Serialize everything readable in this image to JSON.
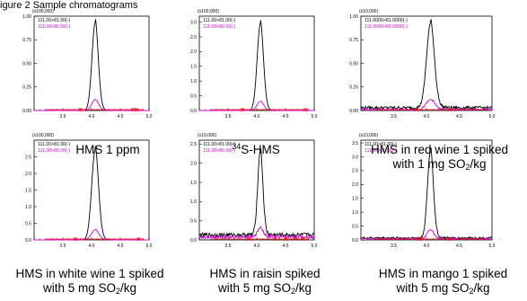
{
  "header": "igure 2 Sample chromatograms",
  "chart_data": [
    {
      "type": "line",
      "caption": "HMS 1 ppm",
      "multiplier": "(x100,000)",
      "xlim": [
        3.0,
        5.0
      ],
      "ylim": [
        0,
        1.0
      ],
      "xticks": [
        "3.5",
        "4.0",
        "4.5",
        "5.0"
      ],
      "yticks": [
        "0.00",
        "0.25",
        "0.50",
        "0.75",
        "1.00"
      ],
      "legend": [
        {
          "label": "111.00>81.00(-)",
          "color": "#000000"
        },
        {
          "label": "111.00>80.00(-)",
          "color": "#d400d4"
        }
      ],
      "series": [
        {
          "label_ref": 0,
          "color": "#000000",
          "baseline": 0.0,
          "peak_x": 4.06,
          "peak_y": 0.98,
          "width": 0.055,
          "noise": 0.0
        },
        {
          "label_ref": 1,
          "color": "#d400d4",
          "baseline": 0.0,
          "peak_x": 4.06,
          "peak_y": 0.12,
          "width": 0.06,
          "noise": 0.0
        }
      ],
      "markers": [
        3.8,
        4.72,
        4.78
      ]
    },
    {
      "type": "line",
      "caption_main": "S-HMS",
      "caption_sup": "34",
      "multiplier": "(x100,000)",
      "xlim": [
        3.0,
        5.0
      ],
      "ylim": [
        0,
        3.2
      ],
      "xticks": [
        "3.5",
        "4.0",
        "4.5",
        "5.0"
      ],
      "yticks": [
        "0.0",
        "0.5",
        "1.0",
        "1.5",
        "2.0",
        "2.5",
        "3.0"
      ],
      "legend": [
        {
          "label": "111.00>81.00(-)",
          "color": "#000000"
        },
        {
          "label": "111.00>80.00(-)",
          "color": "#d400d4"
        }
      ],
      "series": [
        {
          "label_ref": 0,
          "color": "#000000",
          "baseline": 0.0,
          "peak_x": 4.06,
          "peak_y": 3.1,
          "width": 0.055,
          "noise": 0.0
        },
        {
          "label_ref": 1,
          "color": "#d400d4",
          "baseline": 0.0,
          "peak_x": 4.06,
          "peak_y": 0.32,
          "width": 0.06,
          "noise": 0.0
        }
      ],
      "markers": [
        3.75,
        4.85
      ]
    },
    {
      "type": "line",
      "caption_lines": [
        "HMS in red wine 1 spiked",
        "with 1 mg SO",
        "/kg"
      ],
      "caption_sub": "2",
      "multiplier": "(x10,000)",
      "xlim": [
        3.0,
        5.0
      ],
      "ylim": [
        0,
        1.0
      ],
      "xticks": [
        "3.5",
        "4.0",
        "4.5",
        "5.0"
      ],
      "yticks": [
        "0.00",
        "0.25",
        "0.50",
        "0.75",
        "1.00"
      ],
      "legend": [
        {
          "label": "111.0000>81.0000(-)",
          "color": "#000000"
        },
        {
          "label": "111.0000>80.0000(-)",
          "color": "#d400d4"
        }
      ],
      "series": [
        {
          "label_ref": 0,
          "color": "#000000",
          "baseline": 0.03,
          "peak_x": 4.06,
          "peak_y": 0.97,
          "width": 0.06,
          "noise": 0.015
        },
        {
          "label_ref": 1,
          "color": "#d400d4",
          "baseline": 0.01,
          "peak_x": 4.06,
          "peak_y": 0.12,
          "width": 0.065,
          "noise": 0.01
        }
      ],
      "markers": [
        3.85,
        4.35
      ]
    },
    {
      "type": "line",
      "caption_lines": [
        "HMS in white wine 1 spiked",
        "with 5 mg SO",
        "/kg"
      ],
      "caption_sub": "2",
      "multiplier": "(x100,000)",
      "xlim": [
        3.0,
        5.0
      ],
      "ylim": [
        0,
        3.0
      ],
      "xticks": [
        "3.5",
        "4.0",
        "4.5",
        "5.0"
      ],
      "yticks": [
        "0.0",
        "0.5",
        "1.0",
        "1.5",
        "2.0",
        "2.5"
      ],
      "legend": [
        {
          "label": "111.00>81.00(-)",
          "color": "#000000"
        },
        {
          "label": "111.00>80.00(-)",
          "color": "#d400d4"
        }
      ],
      "series": [
        {
          "label_ref": 0,
          "color": "#000000",
          "baseline": 0.0,
          "peak_x": 4.06,
          "peak_y": 2.85,
          "width": 0.06,
          "noise": 0.0
        },
        {
          "label_ref": 1,
          "color": "#d400d4",
          "baseline": 0.0,
          "peak_x": 4.06,
          "peak_y": 0.32,
          "width": 0.065,
          "noise": 0.0
        }
      ],
      "markers": [
        3.72,
        4.82
      ]
    },
    {
      "type": "line",
      "caption_lines": [
        "HMS in raisin spiked",
        "with 5 mg SO",
        "/kg"
      ],
      "caption_sub": "2",
      "multiplier": "(x10,000)",
      "xlim": [
        3.0,
        5.0
      ],
      "ylim": [
        0,
        2.6
      ],
      "xticks": [
        "3.5",
        "4.0",
        "4.5",
        "5.0"
      ],
      "yticks": [
        "0.0",
        "0.5",
        "1.0",
        "1.5",
        "2.0",
        "2.5"
      ],
      "legend": [
        {
          "label": "111.00>81.00(-)",
          "color": "#000000"
        },
        {
          "label": "111.00>80.00(-)",
          "color": "#d400d4"
        }
      ],
      "series": [
        {
          "label_ref": 0,
          "color": "#000000",
          "baseline": 0.05,
          "peak_x": 4.06,
          "peak_y": 2.45,
          "width": 0.045,
          "noise": 0.02
        },
        {
          "label_ref": 1,
          "color": "#d400d4",
          "baseline": 0.03,
          "peak_x": 4.06,
          "peak_y": 0.32,
          "width": 0.05,
          "noise": 0.015
        }
      ],
      "markers": [
        3.86,
        4.32,
        4.5,
        4.66,
        4.8
      ]
    },
    {
      "type": "line",
      "caption_lines": [
        "HMS in mango 1 spiked",
        "with 5 mg SO",
        "/kg"
      ],
      "caption_sub": "2",
      "multiplier": "(x10,000)",
      "xlim": [
        3.0,
        5.0
      ],
      "ylim": [
        0,
        3.6
      ],
      "xticks": [
        "3.5",
        "4.0",
        "4.5",
        "5.0"
      ],
      "yticks": [
        "0.0",
        "0.5",
        "1.0",
        "1.5",
        "2.0",
        "2.5",
        "3.0",
        "3.5"
      ],
      "legend": [
        {
          "label": "111.00>81.00(-)",
          "color": "#000000"
        },
        {
          "label": "111.00>80.00(-)",
          "color": "#d400d4"
        }
      ],
      "series": [
        {
          "label_ref": 0,
          "color": "#000000",
          "baseline": 0.02,
          "peak_x": 4.06,
          "peak_y": 3.4,
          "width": 0.045,
          "noise": 0.01
        },
        {
          "label_ref": 1,
          "color": "#d400d4",
          "baseline": 0.01,
          "peak_x": 4.06,
          "peak_y": 0.38,
          "width": 0.05,
          "noise": 0.008
        }
      ],
      "markers": [
        3.9,
        4.35
      ]
    }
  ]
}
